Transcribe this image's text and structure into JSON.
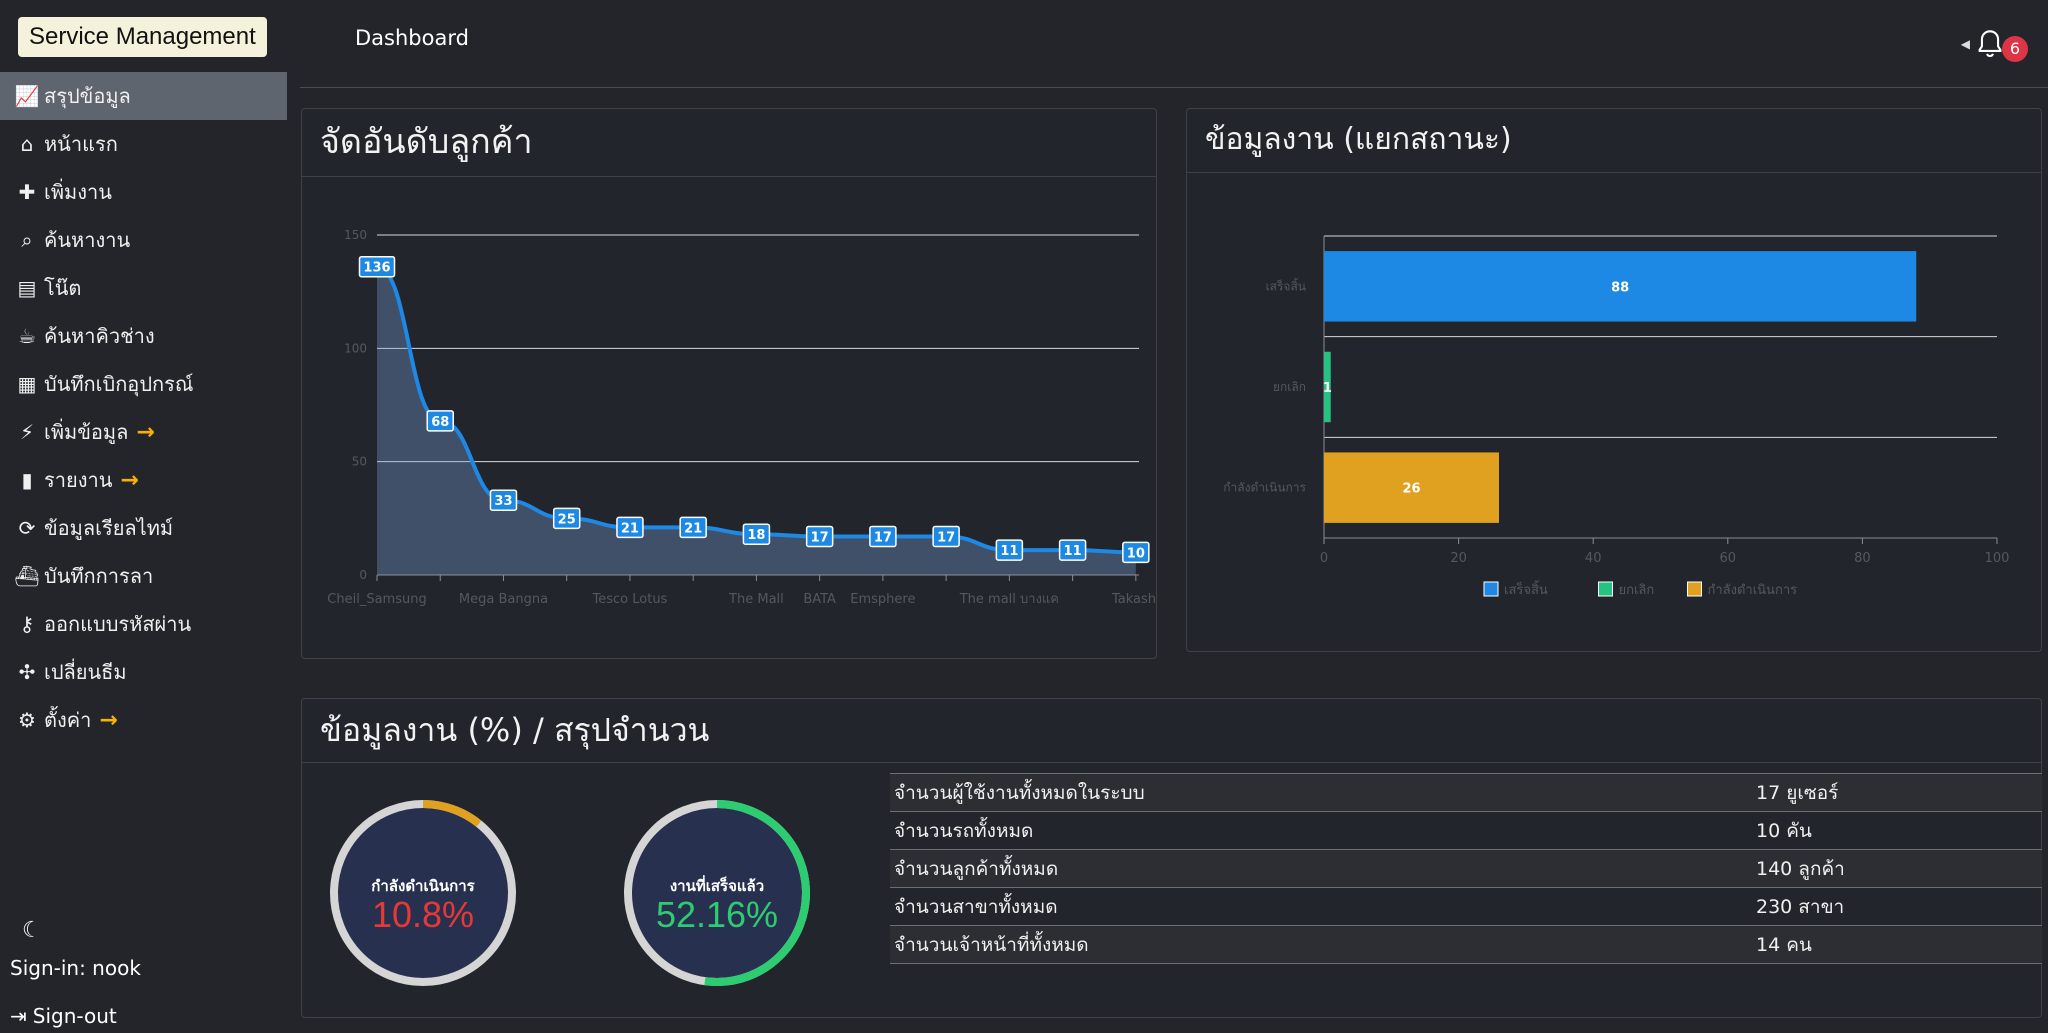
{
  "brand": "Service Management",
  "page_title": "Dashboard",
  "notifications": {
    "count": "6"
  },
  "sidebar": {
    "items": [
      {
        "label": "สรุปข้อมูล",
        "icon": "chart-line-icon",
        "active": true,
        "arrow": false
      },
      {
        "label": "หน้าแรก",
        "icon": "home-icon",
        "active": false,
        "arrow": false
      },
      {
        "label": "เพิ่มงาน",
        "icon": "person-add-icon",
        "active": false,
        "arrow": false
      },
      {
        "label": "ค้นหางาน",
        "icon": "search-icon",
        "active": false,
        "arrow": false
      },
      {
        "label": "โน๊ต",
        "icon": "book-icon",
        "active": false,
        "arrow": false
      },
      {
        "label": "ค้นหาคิวช่าง",
        "icon": "coffee-icon",
        "active": false,
        "arrow": false
      },
      {
        "label": "บันทึกเบิกอุปกรณ์",
        "icon": "boxes-icon",
        "active": false,
        "arrow": false
      },
      {
        "label": "เพิ่มข้อมูล",
        "icon": "plug-add-icon",
        "active": false,
        "arrow": true
      },
      {
        "label": "รายงาน",
        "icon": "bar-chart-icon",
        "active": false,
        "arrow": true
      },
      {
        "label": "ข้อมูลเรียลไทม์",
        "icon": "refresh-icon",
        "active": false,
        "arrow": false
      },
      {
        "label": "บันทึกการลา",
        "icon": "ship-icon",
        "active": false,
        "arrow": false
      },
      {
        "label": "ออกแบบรหัสผ่าน",
        "icon": "key-icon",
        "active": false,
        "arrow": false
      },
      {
        "label": "เปลี่ยนธีม",
        "icon": "figma-icon",
        "active": false,
        "arrow": false
      },
      {
        "label": "ตั้งค่า",
        "icon": "gear-icon",
        "active": false,
        "arrow": true
      }
    ],
    "signin": "Sign-in: nook",
    "signout": "Sign-out"
  },
  "cards": {
    "rank_title": "จัดอันดับลูกค้า",
    "status_title": "ข้อมูลงาน (แยกสถานะ)",
    "summary_title": "ข้อมูลงาน (%) / สรุปจำนวน"
  },
  "chart_data": [
    {
      "type": "area",
      "title": "จัดอันดับลูกค้า",
      "x_tick_labels": [
        "Cheil_Samsung",
        "Mega Bangna",
        "Tesco Lotus",
        "The Mall",
        "BATA",
        "Emsphere",
        "The mall บางแค",
        "Takashi"
      ],
      "values": [
        136,
        68,
        33,
        25,
        21,
        21,
        18,
        17,
        17,
        17,
        11,
        11,
        10
      ],
      "ylim": [
        0,
        150
      ],
      "yticks": [
        0,
        50,
        100,
        150
      ],
      "grid": true,
      "color": "#1e88e5"
    },
    {
      "type": "bar",
      "orientation": "horizontal",
      "title": "ข้อมูลงาน (แยกสถานะ)",
      "categories": [
        "เสร็จสิ้น",
        "ยกเลิก",
        "กำลังดำเนินการ"
      ],
      "values": [
        88,
        1,
        26
      ],
      "colors": [
        "#1e88e5",
        "#26c281",
        "#e0a020"
      ],
      "xlim": [
        0,
        100
      ],
      "xticks": [
        0,
        20,
        40,
        60,
        80,
        100
      ],
      "legend": [
        "เสร็จสิ้น",
        "ยกเลิก",
        "กำลังดำเนินการ"
      ],
      "legend_position": "bottom"
    }
  ],
  "gauges": [
    {
      "label": "กำลังดำเนินการ",
      "value": "10.8%",
      "fraction": 0.108,
      "color": "#e53935"
    },
    {
      "label": "งานที่เสร็จแล้ว",
      "value": "52.16%",
      "fraction": 0.5216,
      "color": "#2ecc71"
    }
  ],
  "summary": [
    {
      "label": "จำนวนผู้ใช้งานทั้งหมดในระบบ",
      "value": "17 ยูเซอร์"
    },
    {
      "label": "จำนวนรถทั้งหมด",
      "value": "10 คัน"
    },
    {
      "label": "จำนวนลูกค้าทั้งหมด",
      "value": "140 ลูกค้า"
    },
    {
      "label": "จำนวนสาขาทั้งหมด",
      "value": "230 สาขา"
    },
    {
      "label": "จำนวนเจ้าหน้าที่ทั้งหมด",
      "value": "14 คน"
    }
  ]
}
